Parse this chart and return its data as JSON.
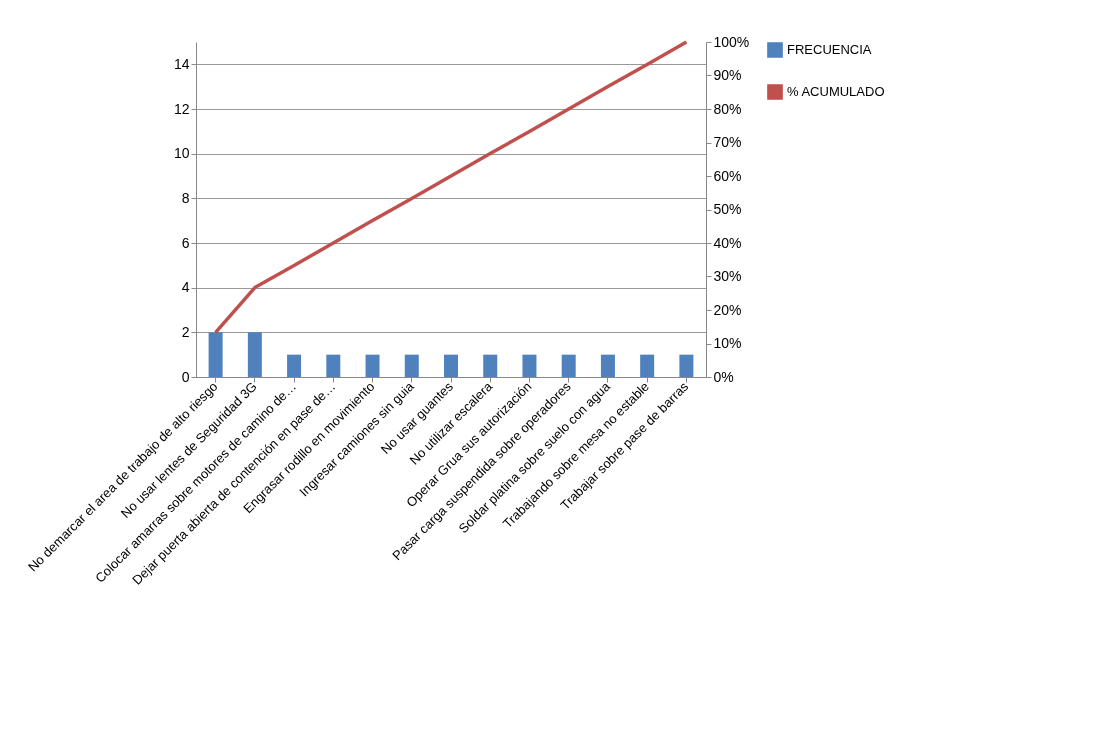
{
  "chart_data": {
    "type": "bar",
    "categories": [
      "No demarcar el area de trabajo de alto riesgo",
      "No usar lentes de Seguridad 3G",
      "Colocar amarras sobre motores de camino de…",
      "Dejar puerta abierta de contención en pase de…",
      "Engrasar rodillo en movimiento",
      "Ingresar camiones sin guia",
      "No usar guantes",
      "No utilizar escalera",
      "Operar Grua sus autorización",
      "Pasar carga suspendida sobre operadores",
      "Soldar platina sobre suelo con agua",
      "Trabajando sobre mesa no estable",
      "Trabajar sobre pase de barras"
    ],
    "series": [
      {
        "name": "FRECUENCIA",
        "color": "#4f81bd",
        "values": [
          2,
          2,
          1,
          1,
          1,
          1,
          1,
          1,
          1,
          1,
          1,
          1,
          1
        ]
      },
      {
        "name": "% ACUMULADO",
        "type": "line",
        "axis": "y2",
        "color": "#c0504d",
        "values": [
          13.3,
          26.7,
          33.3,
          40,
          46.7,
          53.3,
          60,
          66.7,
          73.3,
          80,
          86.7,
          93.3,
          100
        ]
      }
    ],
    "ylim": [
      0,
      15
    ],
    "yticks": [
      0,
      2,
      4,
      6,
      8,
      10,
      12,
      14
    ],
    "y2lim": [
      0,
      100
    ],
    "y2ticks": [
      {
        "value": 0,
        "label": "0%"
      },
      {
        "value": 10,
        "label": "10%"
      },
      {
        "value": 20,
        "label": "20%"
      },
      {
        "value": 30,
        "label": "30%"
      },
      {
        "value": 40,
        "label": "40%"
      },
      {
        "value": 50,
        "label": "50%"
      },
      {
        "value": 60,
        "label": "60%"
      },
      {
        "value": 70,
        "label": "70%"
      },
      {
        "value": 80,
        "label": "80%"
      },
      {
        "value": 90,
        "label": "90%"
      },
      {
        "value": 100,
        "label": "100%"
      }
    ],
    "grid": "y",
    "legend": "right",
    "marker": "none",
    "line_style": "solid"
  }
}
